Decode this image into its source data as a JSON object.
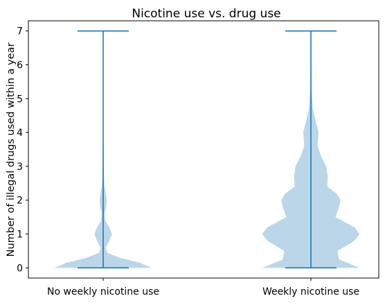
{
  "chart_data": {
    "type": "violin",
    "title": "Nicotine use vs. drug use",
    "xlabel": "",
    "ylabel": "Number of illegal drugs used within a year",
    "categories": [
      "No weekly nicotine use",
      "Weekly nicotine use"
    ],
    "ylim": [
      -0.3,
      7.3
    ],
    "yticks": [
      0,
      1,
      2,
      3,
      4,
      5,
      6,
      7
    ],
    "grid": false,
    "legend": "none",
    "colors": {
      "violin_fill": "#1f77b4",
      "violin_fill_opacity": 0.3,
      "lines": "#1f77b4",
      "axes": "#000000"
    },
    "series": [
      {
        "min": 0,
        "max": 7,
        "density_profile": [
          {
            "y": 0.0,
            "w": 0.95
          },
          {
            "y": 0.15,
            "w": 0.72
          },
          {
            "y": 0.3,
            "w": 0.32
          },
          {
            "y": 0.45,
            "w": 0.08
          },
          {
            "y": 0.6,
            "w": 0.05
          },
          {
            "y": 0.8,
            "w": 0.12
          },
          {
            "y": 1.0,
            "w": 0.17
          },
          {
            "y": 1.2,
            "w": 0.12
          },
          {
            "y": 1.4,
            "w": 0.04
          },
          {
            "y": 1.6,
            "w": 0.03
          },
          {
            "y": 1.8,
            "w": 0.06
          },
          {
            "y": 2.0,
            "w": 0.07
          },
          {
            "y": 2.2,
            "w": 0.05
          },
          {
            "y": 2.5,
            "w": 0.02
          },
          {
            "y": 3.0,
            "w": 0.012
          },
          {
            "y": 3.5,
            "w": 0.008
          },
          {
            "y": 4.0,
            "w": 0.005
          },
          {
            "y": 5.0,
            "w": 0.002
          },
          {
            "y": 7.0,
            "w": 0.0
          }
        ]
      },
      {
        "min": 0,
        "max": 7,
        "density_profile": [
          {
            "y": 0.0,
            "w": 0.95
          },
          {
            "y": 0.25,
            "w": 0.55
          },
          {
            "y": 0.5,
            "w": 0.52
          },
          {
            "y": 0.8,
            "w": 0.85
          },
          {
            "y": 1.0,
            "w": 0.95
          },
          {
            "y": 1.2,
            "w": 0.85
          },
          {
            "y": 1.5,
            "w": 0.48
          },
          {
            "y": 1.8,
            "w": 0.55
          },
          {
            "y": 2.0,
            "w": 0.58
          },
          {
            "y": 2.2,
            "w": 0.5
          },
          {
            "y": 2.4,
            "w": 0.32
          },
          {
            "y": 2.7,
            "w": 0.33
          },
          {
            "y": 3.0,
            "w": 0.3
          },
          {
            "y": 3.3,
            "w": 0.2
          },
          {
            "y": 3.6,
            "w": 0.13
          },
          {
            "y": 4.0,
            "w": 0.15
          },
          {
            "y": 4.3,
            "w": 0.1
          },
          {
            "y": 4.7,
            "w": 0.04
          },
          {
            "y": 5.2,
            "w": 0.015
          },
          {
            "y": 6.0,
            "w": 0.005
          },
          {
            "y": 7.0,
            "w": 0.0
          }
        ]
      }
    ]
  }
}
